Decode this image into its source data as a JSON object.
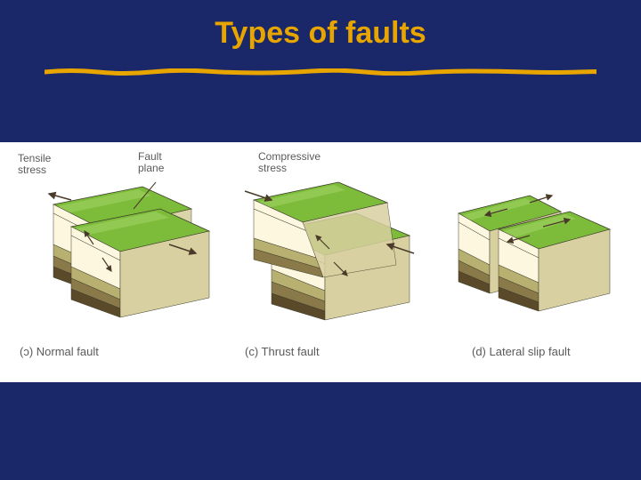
{
  "title": "Types of faults",
  "title_color": "#e8a500",
  "background": "#1a2768",
  "underline": {
    "color": "#e8a500",
    "stroke_width": 5
  },
  "figure": {
    "background": "#ffffff",
    "strata": {
      "top": "#7dbb3a",
      "top_highlight": "#a8d86a",
      "layer1": "#fdf7e0",
      "layer2": "#b8b070",
      "layer3": "#8a7a4a",
      "layer4": "#5a4a2a",
      "side_shade": "rgba(0,0,0,0.15)",
      "outline": "#3a3a2a"
    },
    "labels": {
      "tensile": "Tensile\nstress",
      "fault_plane": "Fault\nplane",
      "compressive": "Compressive\nstress"
    },
    "captions": {
      "a": "(ɔ)   Normal fault",
      "c": "(c)   Thrust fault",
      "d": "(d)   Lateral slip fault"
    },
    "arrow_color": "#4a3a2a",
    "label_color": "#5a5a5a",
    "label_fontsize": 12,
    "caption_fontsize": 13
  }
}
